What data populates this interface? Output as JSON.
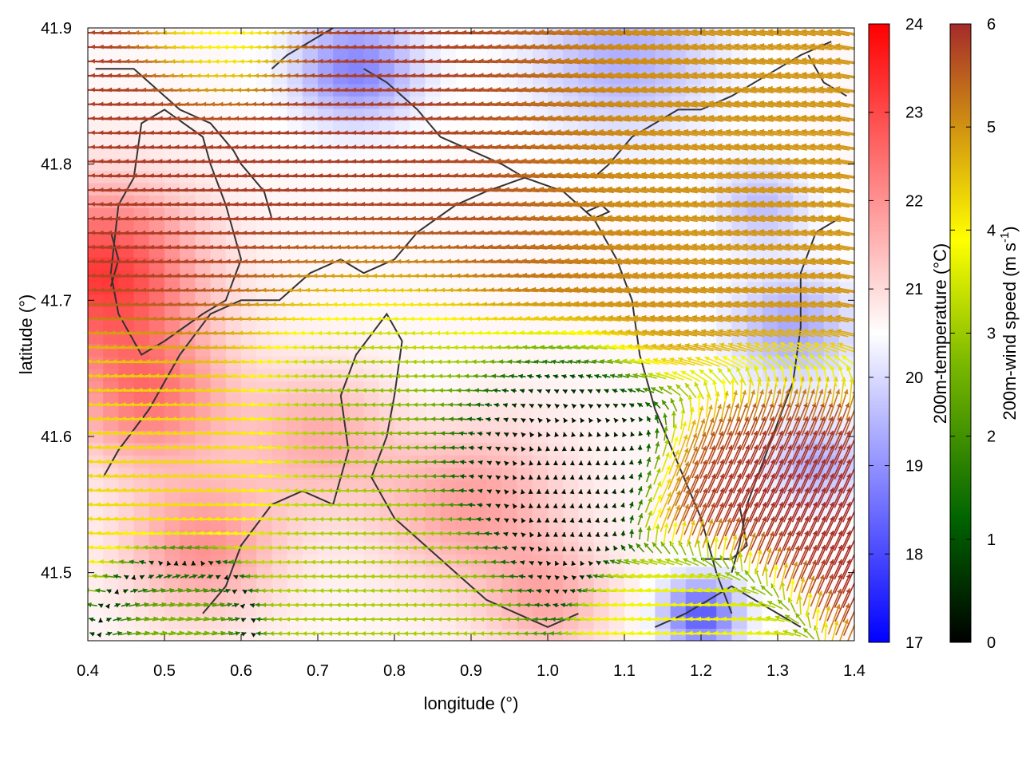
{
  "chart_data": {
    "type": "heatmap",
    "xlabel": "longitude (°)",
    "ylabel": "latitude (°)",
    "xlim": [
      0.4,
      1.4
    ],
    "ylim": [
      41.45,
      41.9
    ],
    "x_ticks": [
      "0.4",
      "0.5",
      "0.6",
      "0.7",
      "0.8",
      "0.9",
      "1.0",
      "1.1",
      "1.2",
      "1.3",
      "1.4"
    ],
    "y_ticks": [
      "41.5",
      "41.6",
      "41.7",
      "41.8",
      "41.9"
    ],
    "grid": false,
    "temperature_colorbar": {
      "label": "200m-temperature (°C)",
      "range": [
        17,
        24
      ],
      "ticks": [
        "17",
        "18",
        "19",
        "20",
        "21",
        "22",
        "23",
        "24"
      ],
      "colors": [
        "#0000ff",
        "#ffffff",
        "#ff0000"
      ]
    },
    "wind_colorbar": {
      "label_main": "200m-wind speed (m s",
      "label_sup": "-1",
      "label_end": ")",
      "range": [
        0,
        6
      ],
      "ticks": [
        "0",
        "1",
        "2",
        "3",
        "4",
        "5",
        "6"
      ],
      "colors": [
        "#000000",
        "#006400",
        "#7ab800",
        "#ffff00",
        "#d49a10",
        "#a52a2a"
      ]
    },
    "temperature_field": {
      "background": 20.6,
      "features": [
        {
          "lon": 0.42,
          "lat": 41.72,
          "t": 23.2,
          "r": 0.12
        },
        {
          "lon": 0.48,
          "lat": 41.63,
          "t": 22.3,
          "r": 0.1
        },
        {
          "lon": 0.55,
          "lat": 41.52,
          "t": 22.0,
          "r": 0.1
        },
        {
          "lon": 0.9,
          "lat": 41.55,
          "t": 21.8,
          "r": 0.12
        },
        {
          "lon": 1.0,
          "lat": 41.48,
          "t": 21.6,
          "r": 0.08
        },
        {
          "lon": 0.7,
          "lat": 41.6,
          "t": 21.6,
          "r": 0.1
        },
        {
          "lon": 0.75,
          "lat": 41.87,
          "t": 18.8,
          "r": 0.08
        },
        {
          "lon": 1.1,
          "lat": 41.88,
          "t": 19.4,
          "r": 0.12
        },
        {
          "lon": 1.32,
          "lat": 41.68,
          "t": 19.3,
          "r": 0.08
        },
        {
          "lon": 1.35,
          "lat": 41.58,
          "t": 19.4,
          "r": 0.06
        },
        {
          "lon": 1.2,
          "lat": 41.47,
          "t": 18.2,
          "r": 0.05
        },
        {
          "lon": 1.28,
          "lat": 41.77,
          "t": 19.6,
          "r": 0.06
        },
        {
          "lon": 0.85,
          "lat": 41.63,
          "t": 20.4,
          "r": 0.06
        }
      ]
    },
    "wind_field": {
      "regimes": [
        {
          "name": "north-westerly-jet",
          "lon": 0.75,
          "lat": 41.8,
          "u": -5.8,
          "v": 0.2,
          "r": 0.28
        },
        {
          "name": "north-east-flow",
          "lon": 1.2,
          "lat": 41.8,
          "u": -4.8,
          "v": 0.8,
          "r": 0.25
        },
        {
          "name": "calm-centre",
          "lon": 1.0,
          "lat": 41.6,
          "u": 0.1,
          "v": 0.2,
          "r": 0.12
        },
        {
          "name": "central-westward",
          "lon": 0.78,
          "lat": 41.65,
          "u": -2.2,
          "v": 0.0,
          "r": 0.15
        },
        {
          "name": "east-coast-jet",
          "lon": 1.3,
          "lat": 41.57,
          "u": 2.5,
          "v": 5.4,
          "r": 0.12
        },
        {
          "name": "south-west-flow",
          "lon": 0.5,
          "lat": 41.58,
          "u": -4.0,
          "v": 0.2,
          "r": 0.15
        },
        {
          "name": "south-west-reverse",
          "lon": 0.52,
          "lat": 41.48,
          "u": 2.6,
          "v": 0.4,
          "r": 0.07
        },
        {
          "name": "south-central",
          "lon": 0.75,
          "lat": 41.52,
          "u": -2.8,
          "v": 0.0,
          "r": 0.12
        },
        {
          "name": "north-edge",
          "lon": 0.6,
          "lat": 41.89,
          "u": -3.0,
          "v": 0.0,
          "r": 0.08
        },
        {
          "name": "south-east-edge",
          "lon": 1.2,
          "lat": 41.47,
          "u": -3.5,
          "v": 0.2,
          "r": 0.08
        }
      ],
      "lon_step": 0.011,
      "lat_step": 0.0105
    },
    "contours": [
      [
        [
          0.41,
          41.87
        ],
        [
          0.46,
          41.87
        ],
        [
          0.52,
          41.84
        ],
        [
          0.56,
          41.83
        ],
        [
          0.59,
          41.81
        ],
        [
          0.6,
          41.8
        ],
        [
          0.63,
          41.78
        ],
        [
          0.64,
          41.76
        ]
      ],
      [
        [
          0.5,
          41.67
        ],
        [
          0.55,
          41.69
        ],
        [
          0.58,
          41.7
        ],
        [
          0.6,
          41.73
        ],
        [
          0.58,
          41.77
        ],
        [
          0.56,
          41.8
        ],
        [
          0.55,
          41.82
        ],
        [
          0.5,
          41.84
        ],
        [
          0.47,
          41.83
        ],
        [
          0.46,
          41.79
        ],
        [
          0.44,
          41.77
        ],
        [
          0.43,
          41.72
        ],
        [
          0.44,
          41.69
        ],
        [
          0.47,
          41.66
        ],
        [
          0.5,
          41.67
        ]
      ],
      [
        [
          0.42,
          41.57
        ],
        [
          0.44,
          41.59
        ],
        [
          0.48,
          41.62
        ],
        [
          0.52,
          41.66
        ],
        [
          0.56,
          41.69
        ],
        [
          0.6,
          41.7
        ],
        [
          0.65,
          41.7
        ],
        [
          0.69,
          41.72
        ],
        [
          0.73,
          41.73
        ],
        [
          0.76,
          41.72
        ],
        [
          0.8,
          41.73
        ],
        [
          0.83,
          41.75
        ],
        [
          0.88,
          41.77
        ],
        [
          0.92,
          41.78
        ],
        [
          0.97,
          41.79
        ],
        [
          1.02,
          41.78
        ],
        [
          1.06,
          41.76
        ],
        [
          1.09,
          41.73
        ],
        [
          1.11,
          41.7
        ],
        [
          1.12,
          41.66
        ],
        [
          1.14,
          41.62
        ],
        [
          1.17,
          41.58
        ],
        [
          1.2,
          41.54
        ],
        [
          1.22,
          41.5
        ],
        [
          1.24,
          41.47
        ]
      ],
      [
        [
          0.55,
          41.47
        ],
        [
          0.58,
          41.49
        ],
        [
          0.6,
          41.52
        ],
        [
          0.64,
          41.55
        ],
        [
          0.68,
          41.56
        ],
        [
          0.72,
          41.55
        ],
        [
          0.74,
          41.59
        ],
        [
          0.73,
          41.63
        ],
        [
          0.75,
          41.66
        ],
        [
          0.79,
          41.69
        ],
        [
          0.81,
          41.67
        ],
        [
          0.8,
          41.63
        ],
        [
          0.79,
          41.6
        ],
        [
          0.77,
          41.57
        ],
        [
          0.8,
          41.54
        ],
        [
          0.84,
          41.52
        ],
        [
          0.88,
          41.5
        ],
        [
          0.92,
          41.48
        ],
        [
          0.96,
          41.47
        ],
        [
          1.0,
          41.46
        ],
        [
          1.04,
          41.47
        ]
      ],
      [
        [
          0.76,
          41.87
        ],
        [
          0.79,
          41.86
        ],
        [
          0.83,
          41.84
        ],
        [
          0.86,
          41.82
        ],
        [
          0.9,
          41.81
        ],
        [
          0.94,
          41.8
        ],
        [
          0.97,
          41.79
        ]
      ],
      [
        [
          0.64,
          41.87
        ],
        [
          0.66,
          41.88
        ],
        [
          0.69,
          41.89
        ],
        [
          0.72,
          41.9
        ]
      ],
      [
        [
          1.06,
          41.79
        ],
        [
          1.08,
          41.8
        ],
        [
          1.11,
          41.82
        ],
        [
          1.14,
          41.83
        ],
        [
          1.17,
          41.84
        ],
        [
          1.2,
          41.84
        ],
        [
          1.24,
          41.85
        ],
        [
          1.27,
          41.86
        ],
        [
          1.3,
          41.87
        ],
        [
          1.33,
          41.88
        ],
        [
          1.37,
          41.89
        ]
      ],
      [
        [
          1.38,
          41.76
        ],
        [
          1.35,
          41.75
        ],
        [
          1.33,
          41.72
        ],
        [
          1.33,
          41.68
        ],
        [
          1.32,
          41.64
        ],
        [
          1.3,
          41.61
        ],
        [
          1.28,
          41.58
        ],
        [
          1.26,
          41.55
        ],
        [
          1.25,
          41.52
        ],
        [
          1.24,
          41.5
        ]
      ],
      [
        [
          1.14,
          41.46
        ],
        [
          1.18,
          41.47
        ],
        [
          1.21,
          41.48
        ],
        [
          1.24,
          41.49
        ],
        [
          1.27,
          41.48
        ],
        [
          1.3,
          41.47
        ],
        [
          1.33,
          41.46
        ]
      ],
      [
        [
          1.34,
          41.88
        ],
        [
          1.36,
          41.86
        ],
        [
          1.39,
          41.85
        ]
      ],
      [
        [
          0.43,
          41.71
        ],
        [
          0.44,
          41.73
        ],
        [
          0.43,
          41.75
        ]
      ],
      [
        [
          1.05,
          41.765
        ],
        [
          1.07,
          41.77
        ],
        [
          1.08,
          41.765
        ],
        [
          1.06,
          41.76
        ],
        [
          1.05,
          41.765
        ]
      ],
      [
        [
          1.2,
          41.51
        ],
        [
          1.24,
          41.51
        ],
        [
          1.26,
          41.52
        ],
        [
          1.25,
          41.55
        ]
      ]
    ]
  }
}
